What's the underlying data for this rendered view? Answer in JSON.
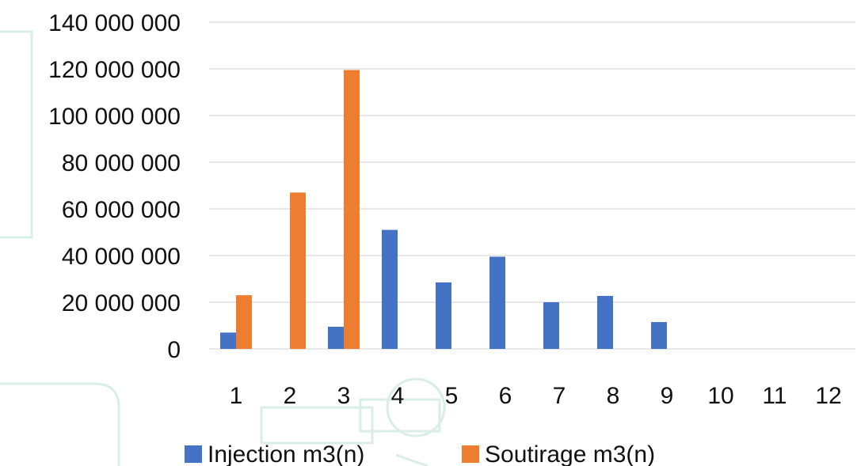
{
  "chart_data": {
    "type": "bar",
    "title": "",
    "xlabel": "",
    "ylabel": "",
    "categories": [
      "1",
      "2",
      "3",
      "4",
      "5",
      "6",
      "7",
      "8",
      "9",
      "10",
      "11",
      "12"
    ],
    "ylim": [
      0,
      140000000
    ],
    "yticks": [
      0,
      20000000,
      40000000,
      60000000,
      80000000,
      100000000,
      120000000,
      140000000
    ],
    "ytick_labels": [
      "0",
      "20 000 000",
      "40 000 000",
      "60 000 000",
      "80 000 000",
      "100 000 000",
      "120 000 000",
      "140 000 000"
    ],
    "grid": true,
    "legend_position": "bottom",
    "series": [
      {
        "name": "Injection m3(n)",
        "color": "#4472c4",
        "values": [
          7000000,
          0,
          9500000,
          51000000,
          28500000,
          39500000,
          20000000,
          22700000,
          11500000,
          0,
          0,
          0
        ]
      },
      {
        "name": "Soutirage m3(n)",
        "color": "#ed7d31",
        "values": [
          23000000,
          67000000,
          119500000,
          0,
          0,
          0,
          0,
          0,
          0,
          0,
          0,
          0
        ]
      }
    ]
  }
}
